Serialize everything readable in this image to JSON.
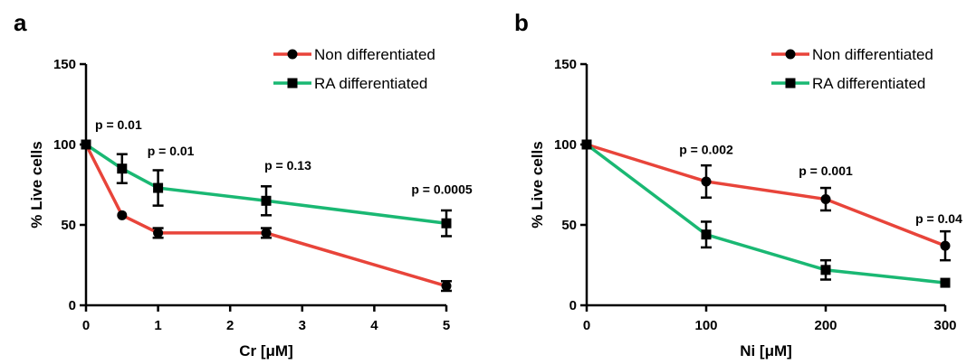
{
  "chart_data": [
    {
      "panel": "a",
      "type": "line",
      "xlabel": "Cr [μM]",
      "ylabel": "% Live cells",
      "xlim": [
        0,
        5
      ],
      "ylim": [
        0,
        150
      ],
      "x_ticks": [
        0,
        1,
        2,
        3,
        4,
        5
      ],
      "y_ticks": [
        0,
        50,
        100,
        150
      ],
      "legend": "top-right",
      "series": [
        {
          "name": "Non differentiated",
          "color": "#e8443a",
          "marker": "circle",
          "x": [
            0,
            0.5,
            1,
            2.5,
            5
          ],
          "y": [
            100,
            56,
            45,
            45,
            12
          ],
          "err": [
            0,
            0,
            3,
            3,
            3
          ]
        },
        {
          "name": "RA differentiated",
          "color": "#1ab873",
          "marker": "square",
          "x": [
            0,
            0.5,
            1,
            2.5,
            5
          ],
          "y": [
            100,
            85,
            73,
            65,
            51
          ],
          "err": [
            0,
            9,
            11,
            9,
            8
          ]
        }
      ],
      "annotations": [
        {
          "text": "p = 0.01",
          "x": 0,
          "y": 108
        },
        {
          "text": "p = 0.01",
          "x": 1,
          "y": 91
        },
        {
          "text": "p = 0.13",
          "x": 2.5,
          "y": 82
        },
        {
          "text": "p = 0.0005",
          "x": 5,
          "y": 66
        }
      ]
    },
    {
      "panel": "b",
      "type": "line",
      "xlabel": "Ni [μM]",
      "ylabel": "% Live cells",
      "xlim": [
        0,
        300
      ],
      "ylim": [
        0,
        150
      ],
      "x_ticks": [
        0,
        100,
        200,
        300
      ],
      "y_ticks": [
        0,
        50,
        100,
        150
      ],
      "legend": "top-right",
      "series": [
        {
          "name": "Non differentiated",
          "color": "#e8443a",
          "marker": "circle",
          "x": [
            0,
            100,
            200,
            300
          ],
          "y": [
            100,
            77,
            66,
            37
          ],
          "err": [
            0,
            10,
            7,
            9
          ]
        },
        {
          "name": "RA differentiated",
          "color": "#1ab873",
          "marker": "square",
          "x": [
            0,
            100,
            200,
            300
          ],
          "y": [
            100,
            44,
            22,
            14
          ],
          "err": [
            0,
            8,
            6,
            0
          ]
        }
      ],
      "annotations": [
        {
          "text": "p = 0.002",
          "x": 100,
          "y": 94
        },
        {
          "text": "p = 0.001",
          "x": 200,
          "y": 81
        },
        {
          "text": "p = 0.04",
          "x": 300,
          "y": 51
        }
      ]
    }
  ]
}
